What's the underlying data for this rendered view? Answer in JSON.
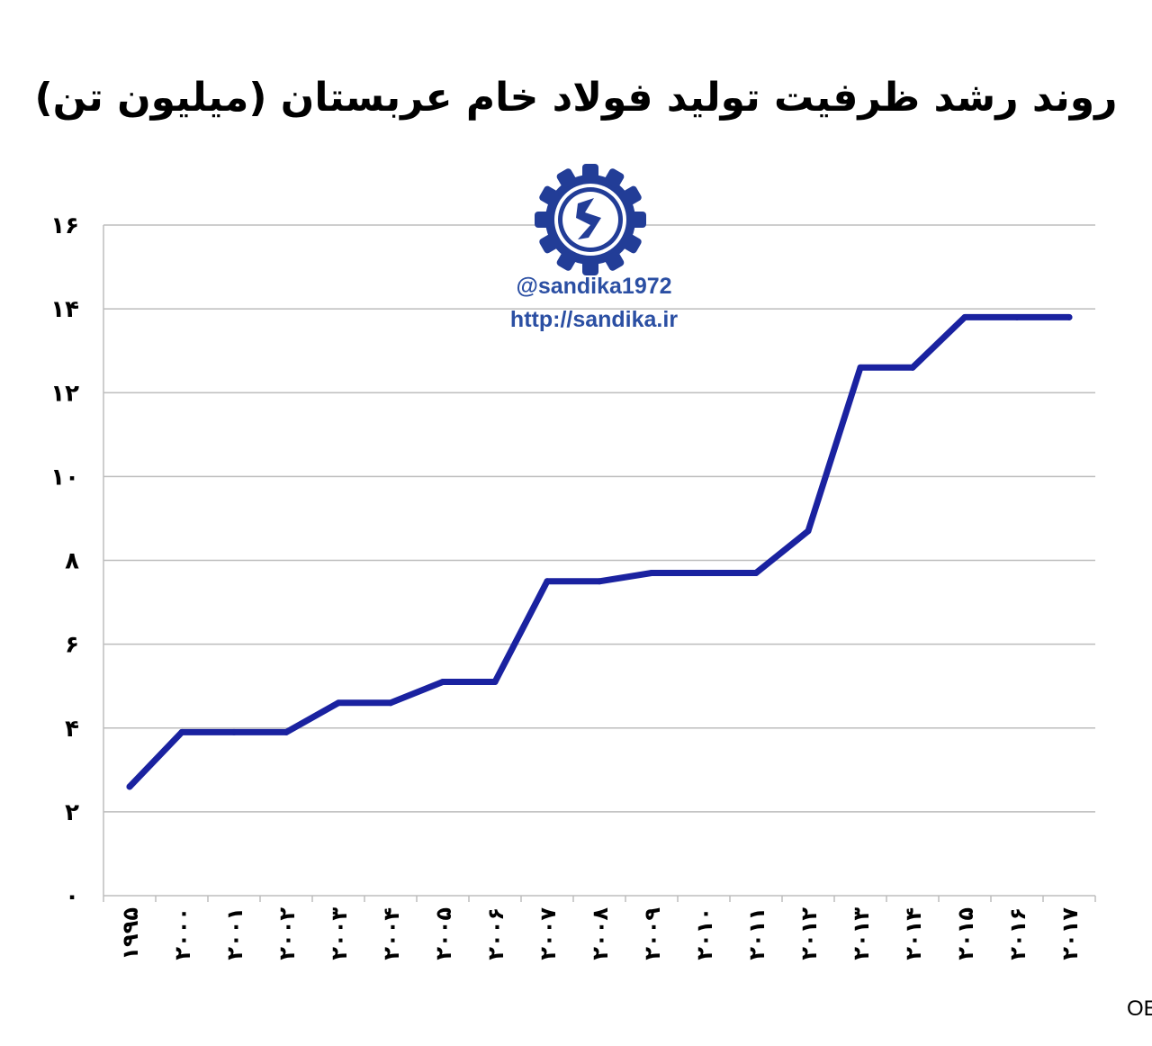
{
  "chart_data": {
    "type": "line",
    "title": "روند رشد ظرفیت تولید فولاد خام عربستان (میلیون تن)",
    "categories": [
      "۱۹۹۵",
      "۲۰۰۰",
      "۲۰۰۱",
      "۲۰۰۲",
      "۲۰۰۳",
      "۲۰۰۴",
      "۲۰۰۵",
      "۲۰۰۶",
      "۲۰۰۷",
      "۲۰۰۸",
      "۲۰۰۹",
      "۲۰۱۰",
      "۲۰۱۱",
      "۲۰۱۲",
      "۲۰۱۳",
      "۲۰۱۴",
      "۲۰۱۵",
      "۲۰۱۶",
      "۲۰۱۷"
    ],
    "series": [
      {
        "values": [
          2.6,
          3.9,
          3.9,
          3.9,
          4.6,
          4.6,
          5.1,
          5.1,
          7.5,
          7.5,
          7.7,
          7.7,
          7.7,
          8.7,
          12.6,
          12.6,
          13.8,
          13.8,
          13.8
        ]
      }
    ],
    "ylim": [
      0,
      16
    ],
    "yticks": [
      {
        "value": 0,
        "label": "۰"
      },
      {
        "value": 2,
        "label": "۲"
      },
      {
        "value": 4,
        "label": "۴"
      },
      {
        "value": 6,
        "label": "۶"
      },
      {
        "value": 8,
        "label": "۸"
      },
      {
        "value": 10,
        "label": "۱۰"
      },
      {
        "value": 12,
        "label": "۱۲"
      },
      {
        "value": 14,
        "label": "۱۴"
      },
      {
        "value": 16,
        "label": "۱۶"
      }
    ],
    "grid": true,
    "line_color": "#1a22a0"
  },
  "watermark": {
    "handle": "@sandika1972",
    "url": "http://sandika.ir",
    "logo_icon": "sandika-gear-logo-icon",
    "color": "#2b4fa3"
  },
  "source": "منبع: OECD"
}
